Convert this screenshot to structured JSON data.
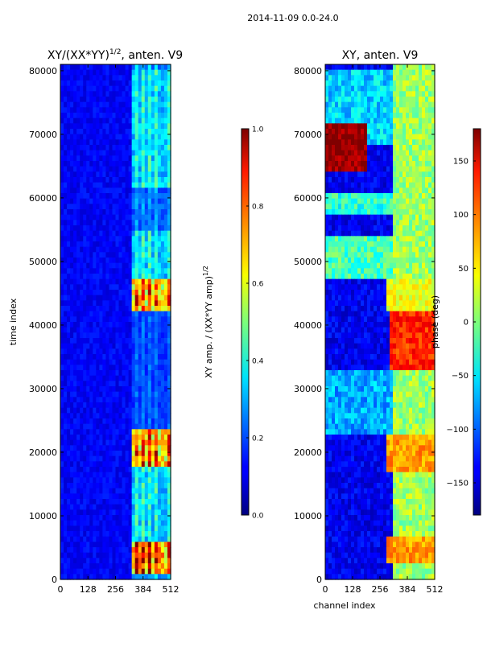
{
  "figure": {
    "suptitle": "2014-11-09 0.0-24.0"
  },
  "chart_data": [
    {
      "type": "heatmap",
      "title_main": "XY/(XX*YY)",
      "title_sup": "1/2",
      "title_tail": ", anten. V9",
      "xlabel": "",
      "ylabel": "time index",
      "xlim": [
        0,
        512
      ],
      "ylim": [
        0,
        81000
      ],
      "xticks": [
        0,
        128,
        256,
        384,
        512
      ],
      "yticks": [
        0,
        10000,
        20000,
        30000,
        40000,
        50000,
        60000,
        70000,
        80000
      ],
      "colormap": "jet",
      "colorbar": {
        "label_main": "XY amp. / (XX*YY amp)",
        "label_sup": "1/2",
        "range": [
          0.0,
          1.0
        ],
        "ticks": [
          "0.0",
          "0.2",
          "0.4",
          "0.6",
          "0.8",
          "1.0"
        ],
        "tick_values": [
          0.0,
          0.2,
          0.4,
          0.6,
          0.8,
          1.0
        ]
      },
      "features": {
        "background_level": 0.08,
        "bright_channel_range": [
          330,
          505
        ],
        "bright_channel_columns": [
          345,
          372,
          400,
          428,
          455,
          482
        ],
        "high_rows": [
          [
            500,
            6000,
            0.97
          ],
          [
            18000,
            24000,
            0.9
          ],
          [
            42500,
            47000,
            0.88
          ]
        ],
        "medium_rows": [
          [
            6000,
            18000,
            0.45
          ],
          [
            24000,
            42500,
            0.25
          ],
          [
            47000,
            55000,
            0.45
          ],
          [
            55000,
            62000,
            0.3
          ],
          [
            62000,
            72000,
            0.45
          ],
          [
            72000,
            80500,
            0.45
          ]
        ]
      }
    },
    {
      "type": "heatmap",
      "title": "XY, anten. V9",
      "xlabel": "channel index",
      "ylabel": "",
      "xlim": [
        0,
        512
      ],
      "ylim": [
        0,
        81000
      ],
      "xticks": [
        0,
        128,
        256,
        384,
        512
      ],
      "yticks": [
        0,
        10000,
        20000,
        30000,
        40000,
        50000,
        60000,
        70000,
        80000
      ],
      "colormap": "jet",
      "colorbar": {
        "label": "phase (deg)",
        "range": [
          -180,
          180
        ],
        "ticks": [
          "150",
          "100",
          "50",
          "0",
          "−50",
          "−100",
          "−150"
        ],
        "tick_values": [
          150,
          100,
          50,
          0,
          -50,
          -100,
          -150
        ]
      },
      "features": {
        "background_level": -140,
        "bright_channel_range": [
          320,
          512
        ],
        "warm_blocks": [
          [
            280,
            512,
            2500,
            7000,
            80
          ],
          [
            280,
            512,
            16500,
            22500,
            80
          ],
          [
            300,
            512,
            33000,
            42000,
            120
          ],
          [
            280,
            512,
            42500,
            47500,
            40
          ],
          [
            0,
            200,
            64000,
            72000,
            175
          ]
        ],
        "cyan_blocks": [
          [
            0,
            512,
            47500,
            54000,
            -20
          ],
          [
            0,
            512,
            57000,
            61000,
            -30
          ],
          [
            0,
            512,
            68000,
            80000,
            -60
          ],
          [
            0,
            512,
            22500,
            33000,
            -75
          ]
        ]
      }
    }
  ]
}
